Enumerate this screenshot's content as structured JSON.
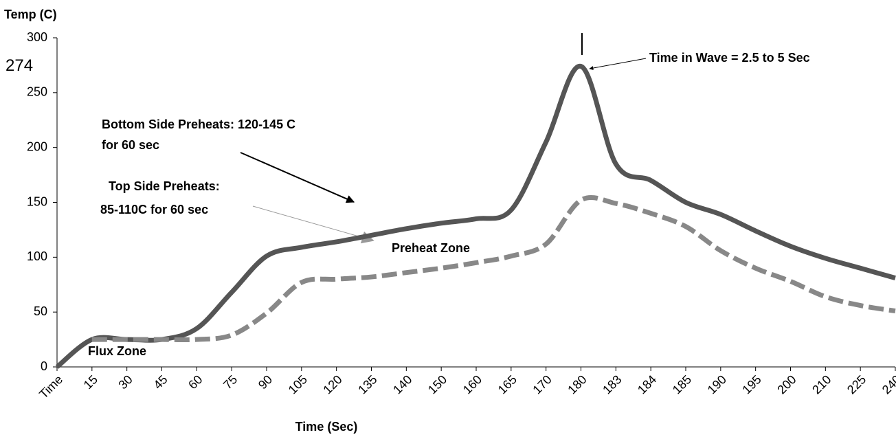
{
  "chart_data": {
    "type": "line",
    "y_axis_title": "Temp (C)",
    "x_axis_title": "Time (Sec)",
    "categories": [
      "Time",
      "15",
      "30",
      "45",
      "60",
      "75",
      "90",
      "105",
      "120",
      "135",
      "140",
      "150",
      "160",
      "165",
      "170",
      "180",
      "183",
      "184",
      "185",
      "190",
      "195",
      "200",
      "210",
      "225",
      "240"
    ],
    "series": [
      {
        "name": "Bottom Side",
        "color": "#555555",
        "dashed": false,
        "values": [
          0,
          25,
          25,
          25,
          35,
          68,
          101,
          109,
          114,
          120,
          126,
          131,
          135,
          143,
          205,
          274,
          185,
          170,
          150,
          139,
          124,
          110,
          99,
          90,
          81
        ]
      },
      {
        "name": "Top Side",
        "color": "#888888",
        "dashed": true,
        "values": [
          null,
          25,
          25,
          25,
          25,
          29,
          49,
          77,
          80,
          82,
          86,
          90,
          95,
          101,
          112,
          152,
          149,
          140,
          128,
          106,
          90,
          78,
          64,
          56,
          51
        ]
      }
    ],
    "ylim": [
      0,
      300
    ],
    "yticks": [
      0,
      50,
      100,
      150,
      200,
      250,
      300
    ],
    "peak_label": 274,
    "annotations": {
      "wave": "Time in Wave = 2.5 to 5 Sec",
      "bottom": [
        "Bottom Side Preheats: 120-145 C",
        "for 60 sec"
      ],
      "top": [
        "Top Side Preheats:",
        "85-110C for 60 sec"
      ],
      "preheat": "Preheat Zone",
      "flux": "Flux Zone"
    }
  }
}
